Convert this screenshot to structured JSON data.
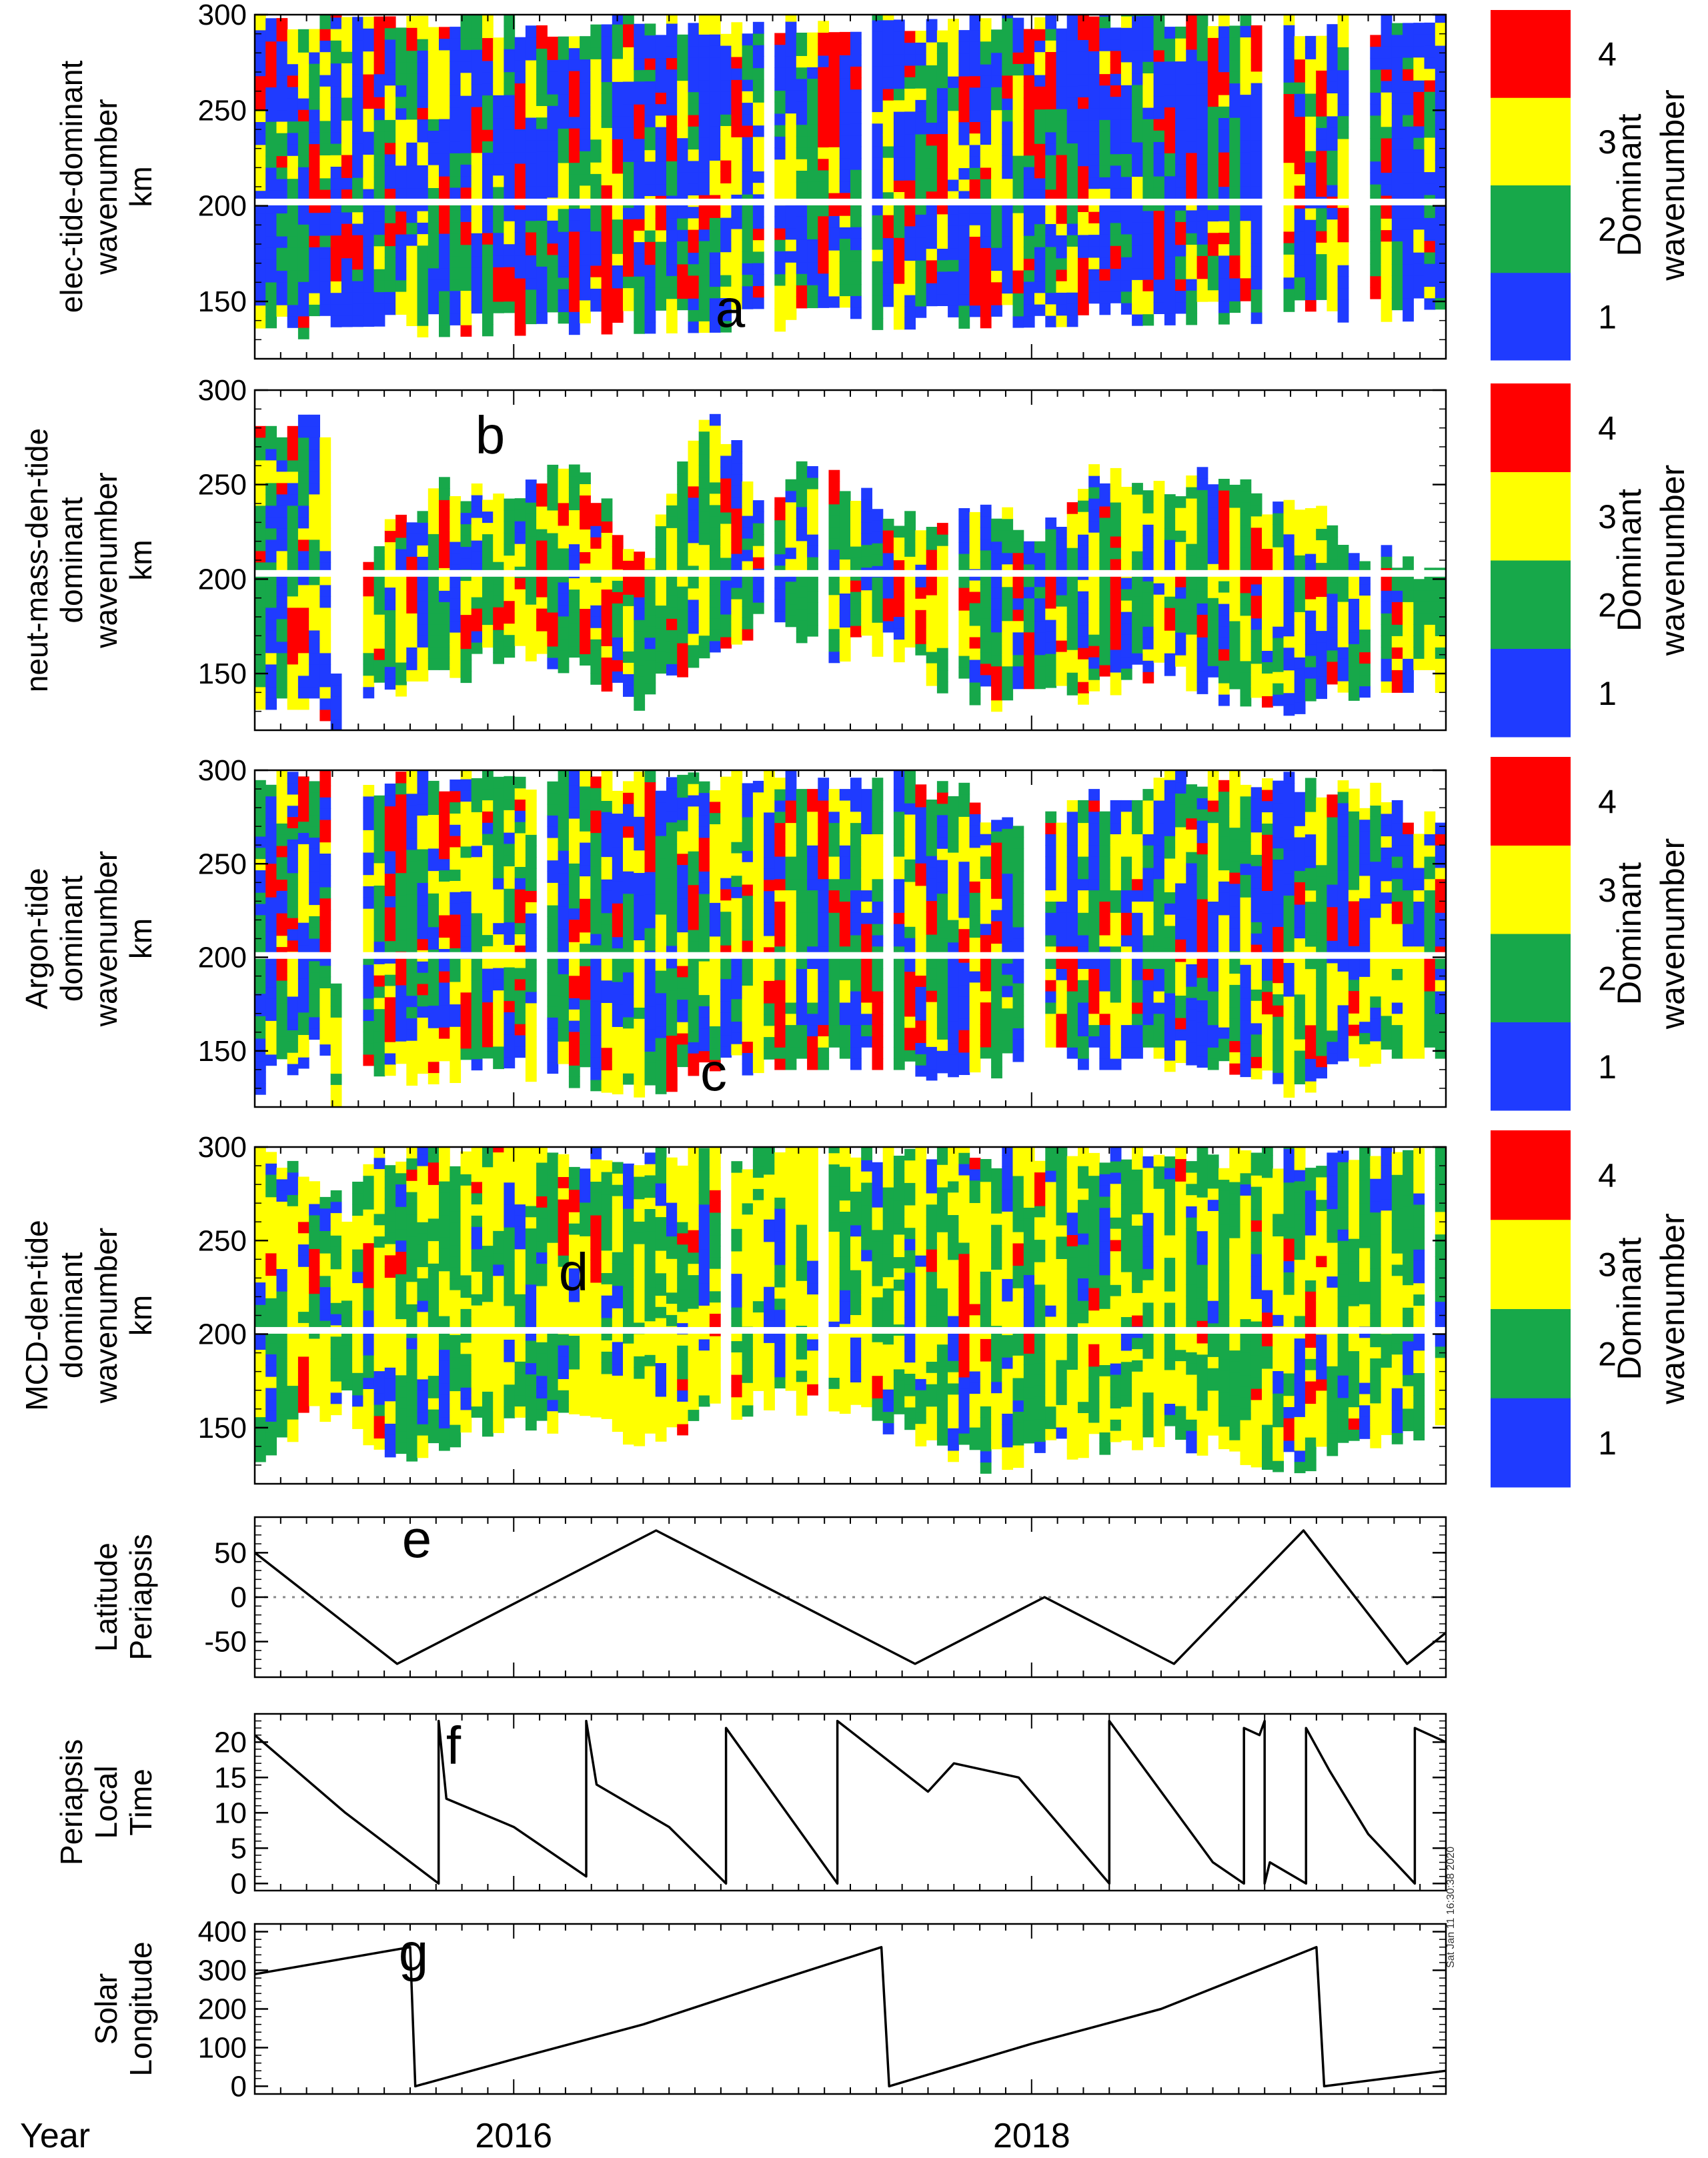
{
  "x_axis": {
    "label": "Year",
    "range": [
      2015.0,
      2019.6
    ],
    "ticks": [
      {
        "value": 2016,
        "label": "2016"
      },
      {
        "value": 2018,
        "label": "2018"
      }
    ]
  },
  "colorbar": {
    "title": "Dominant wavenumber",
    "levels": [
      {
        "value": 1,
        "label": "1",
        "color": "#1f3bff"
      },
      {
        "value": 2,
        "label": "2",
        "color": "#17a84a"
      },
      {
        "value": 3,
        "label": "3",
        "color": "#ffff00"
      },
      {
        "value": 4,
        "label": "4",
        "color": "#ff0000"
      }
    ]
  },
  "timestamp": "Sat Jan 11 16:30:38 2020",
  "chart_data": [
    {
      "type": "heatmap",
      "id": "a",
      "letter": "a",
      "ylabel_lines": [
        "elec-tide-dominant",
        "wavenumber",
        "km"
      ],
      "ylim": [
        120,
        300
      ],
      "yticks": [
        150,
        200,
        250,
        300
      ],
      "x_range": [
        2015.0,
        2019.6
      ],
      "columns": 110,
      "gap_altitude": 202,
      "seed": 11,
      "weights": [
        0.45,
        0.22,
        0.2,
        0.13
      ],
      "coverage": [
        {
          "x": 2015.0,
          "top": 300,
          "bottom": 130
        },
        {
          "x": 2019.6,
          "top": 300,
          "bottom": 140
        }
      ],
      "note": "Dominant wavenumber versus date and altitude (approximated from the figure)"
    },
    {
      "type": "heatmap",
      "id": "b",
      "letter": "b",
      "ylabel_lines": [
        "neut-mass-den-tide",
        "dominant",
        "wavenumber",
        "km"
      ],
      "ylim": [
        120,
        300
      ],
      "yticks": [
        150,
        200,
        250,
        300
      ],
      "x_range": [
        2015.0,
        2019.6
      ],
      "columns": 110,
      "gap_altitude": 203,
      "seed": 23,
      "weights": [
        0.2,
        0.35,
        0.3,
        0.15
      ],
      "coverage": [
        {
          "x": 2015.0,
          "top": 285,
          "bottom": 125
        },
        {
          "x": 2015.3,
          "top": 285,
          "bottom": 125
        },
        {
          "x": 2015.33,
          "top": 0,
          "bottom": 0
        },
        {
          "x": 2015.4,
          "top": 0,
          "bottom": 0
        },
        {
          "x": 2015.42,
          "top": 210,
          "bottom": 130
        },
        {
          "x": 2015.6,
          "top": 240,
          "bottom": 140
        },
        {
          "x": 2015.75,
          "top": 250,
          "bottom": 140
        },
        {
          "x": 2016.0,
          "top": 245,
          "bottom": 160
        },
        {
          "x": 2016.2,
          "top": 265,
          "bottom": 150
        },
        {
          "x": 2016.35,
          "top": 240,
          "bottom": 135
        },
        {
          "x": 2016.5,
          "top": 210,
          "bottom": 130
        },
        {
          "x": 2016.75,
          "top": 295,
          "bottom": 160
        },
        {
          "x": 2016.95,
          "top": 250,
          "bottom": 170
        },
        {
          "x": 2017.2,
          "top": 265,
          "bottom": 155
        },
        {
          "x": 2017.45,
          "top": 240,
          "bottom": 160
        },
        {
          "x": 2017.65,
          "top": 225,
          "bottom": 140
        },
        {
          "x": 2017.85,
          "top": 245,
          "bottom": 130
        },
        {
          "x": 2018.05,
          "top": 225,
          "bottom": 130
        },
        {
          "x": 2018.25,
          "top": 260,
          "bottom": 135
        },
        {
          "x": 2018.45,
          "top": 245,
          "bottom": 145
        },
        {
          "x": 2018.65,
          "top": 262,
          "bottom": 140
        },
        {
          "x": 2018.85,
          "top": 245,
          "bottom": 125
        },
        {
          "x": 2019.1,
          "top": 240,
          "bottom": 130
        },
        {
          "x": 2019.35,
          "top": 215,
          "bottom": 140
        },
        {
          "x": 2019.6,
          "top": 200,
          "bottom": 140
        }
      ]
    },
    {
      "type": "heatmap",
      "id": "c",
      "letter": "c",
      "ylabel_lines": [
        "Argon-tide",
        "dominant",
        "wavenumber",
        "km"
      ],
      "ylim": [
        120,
        300
      ],
      "yticks": [
        150,
        200,
        250,
        300
      ],
      "x_range": [
        2015.0,
        2019.6
      ],
      "columns": 110,
      "gap_altitude": 201,
      "seed": 37,
      "weights": [
        0.3,
        0.3,
        0.25,
        0.15
      ],
      "coverage": [
        {
          "x": 2015.0,
          "top": 300,
          "bottom": 125
        },
        {
          "x": 2015.3,
          "top": 300,
          "bottom": 150
        },
        {
          "x": 2015.34,
          "top": 0,
          "bottom": 0
        },
        {
          "x": 2015.4,
          "top": 0,
          "bottom": 0
        },
        {
          "x": 2015.42,
          "top": 295,
          "bottom": 130
        },
        {
          "x": 2016.0,
          "top": 300,
          "bottom": 135
        },
        {
          "x": 2016.5,
          "top": 300,
          "bottom": 125
        },
        {
          "x": 2017.0,
          "top": 300,
          "bottom": 140
        },
        {
          "x": 2017.5,
          "top": 300,
          "bottom": 140
        },
        {
          "x": 2017.7,
          "top": 290,
          "bottom": 130
        },
        {
          "x": 2018.0,
          "top": 270,
          "bottom": 140
        },
        {
          "x": 2018.5,
          "top": 300,
          "bottom": 140
        },
        {
          "x": 2019.0,
          "top": 300,
          "bottom": 125
        },
        {
          "x": 2019.4,
          "top": 285,
          "bottom": 140
        },
        {
          "x": 2019.6,
          "top": 270,
          "bottom": 140
        }
      ]
    },
    {
      "type": "heatmap",
      "id": "d",
      "letter": "d",
      "ylabel_lines": [
        "MCD-den-tide",
        "dominant",
        "wavenumber",
        "km"
      ],
      "ylim": [
        120,
        300
      ],
      "yticks": [
        150,
        200,
        250,
        300
      ],
      "x_range": [
        2015.0,
        2019.6
      ],
      "columns": 110,
      "gap_altitude": 202,
      "seed": 53,
      "weights": [
        0.12,
        0.35,
        0.48,
        0.05
      ],
      "coverage": [
        {
          "x": 2015.0,
          "top": 300,
          "bottom": 130
        },
        {
          "x": 2015.35,
          "top": 270,
          "bottom": 160
        },
        {
          "x": 2015.45,
          "top": 300,
          "bottom": 125
        },
        {
          "x": 2016.0,
          "top": 300,
          "bottom": 150
        },
        {
          "x": 2016.5,
          "top": 300,
          "bottom": 140
        },
        {
          "x": 2017.0,
          "top": 300,
          "bottom": 160
        },
        {
          "x": 2017.5,
          "top": 300,
          "bottom": 145
        },
        {
          "x": 2017.8,
          "top": 300,
          "bottom": 125
        },
        {
          "x": 2018.0,
          "top": 300,
          "bottom": 130
        },
        {
          "x": 2018.5,
          "top": 300,
          "bottom": 140
        },
        {
          "x": 2019.0,
          "top": 300,
          "bottom": 125
        },
        {
          "x": 2019.6,
          "top": 300,
          "bottom": 140
        }
      ]
    },
    {
      "type": "line",
      "id": "e",
      "letter": "e",
      "ylabel_lines": [
        "Latitude",
        "Periapsis"
      ],
      "ylim": [
        -90,
        90
      ],
      "yticks": [
        -50,
        0,
        50
      ],
      "zero_line": true,
      "x": [
        2015.0,
        2015.55,
        2016.05,
        2016.55,
        2017.05,
        2017.55,
        2018.05,
        2018.55,
        2019.05,
        2019.45,
        2019.6
      ],
      "y": [
        50,
        -75,
        0,
        75,
        0,
        -75,
        0,
        -75,
        75,
        -75,
        -40
      ]
    },
    {
      "type": "line",
      "id": "f",
      "letter": "f",
      "ylabel_lines": [
        "Periapsis",
        "Local",
        "Time"
      ],
      "ylim": [
        -1,
        24
      ],
      "yticks": [
        0,
        5,
        10,
        15,
        20
      ],
      "x": [
        2015.0,
        2015.35,
        2015.71,
        2015.71,
        2015.74,
        2016.0,
        2016.28,
        2016.28,
        2016.32,
        2016.6,
        2016.82,
        2016.82,
        2017.25,
        2017.25,
        2017.6,
        2017.7,
        2017.95,
        2018.3,
        2018.3,
        2018.7,
        2018.82,
        2018.82,
        2018.88,
        2018.9,
        2018.9,
        2018.92,
        2019.06,
        2019.06,
        2019.15,
        2019.3,
        2019.48,
        2019.48,
        2019.6
      ],
      "y": [
        21,
        10,
        0,
        23,
        12,
        8,
        1,
        23,
        14,
        8,
        0,
        22,
        0,
        23,
        13,
        17,
        15,
        0,
        23,
        3,
        0,
        22,
        21,
        23,
        0,
        3,
        0,
        22,
        16,
        7,
        0,
        22,
        20
      ]
    },
    {
      "type": "line",
      "id": "g",
      "letter": "g",
      "ylabel_lines": [
        "Solar",
        "Longitude"
      ],
      "ylim": [
        -20,
        420
      ],
      "yticks": [
        0,
        100,
        200,
        300,
        400
      ],
      "x": [
        2015.0,
        2015.6,
        2015.62,
        2016.0,
        2016.5,
        2017.0,
        2017.42,
        2017.45,
        2018.0,
        2018.5,
        2019.1,
        2019.13,
        2019.6
      ],
      "y": [
        290,
        360,
        0,
        70,
        160,
        270,
        360,
        0,
        110,
        200,
        360,
        0,
        40
      ]
    }
  ]
}
